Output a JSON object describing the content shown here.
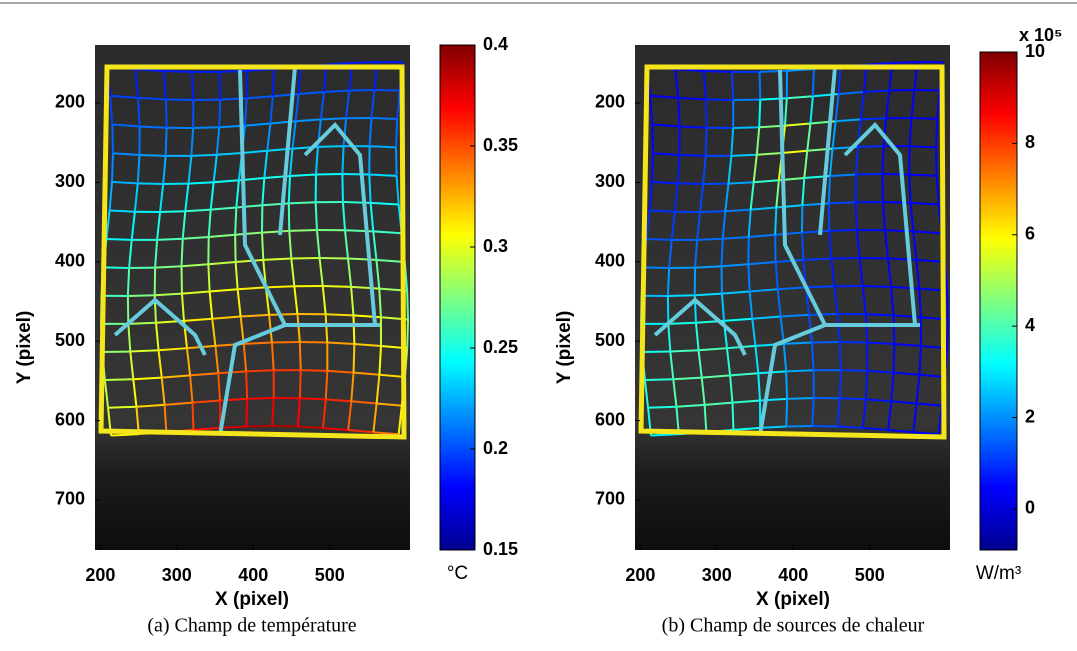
{
  "chart_data": [
    {
      "type": "image",
      "xlabel": "X (pixel)",
      "ylabel": "Y (pixel)",
      "xlim": [
        193,
        605
      ],
      "ylim": [
        127,
        763
      ],
      "y_reversed": true,
      "xticks": [
        200,
        300,
        400,
        500
      ],
      "yticks": [
        200,
        300,
        400,
        500,
        600,
        700
      ],
      "clim": [
        0.15,
        0.4
      ],
      "cticks": [
        0.15,
        0.2,
        0.25,
        0.3,
        0.35,
        0.4
      ],
      "colorbar_label": "°C",
      "caption": "(a) Champ de température"
    },
    {
      "type": "image",
      "xlabel": "X (pixel)",
      "ylabel": "Y (pixel)",
      "xlim": [
        193,
        605
      ],
      "ylim": [
        127,
        763
      ],
      "y_reversed": true,
      "xticks": [
        200,
        300,
        400,
        500
      ],
      "yticks": [
        200,
        300,
        400,
        500,
        600,
        700
      ],
      "clim": [
        -0.9,
        10
      ],
      "cticks": [
        0,
        2,
        4,
        6,
        8,
        10
      ],
      "colorbar_label": "W/m³",
      "colorbar_multiplier": "x 10⁵",
      "caption": "(b) Champ de sources de chaleur"
    }
  ]
}
